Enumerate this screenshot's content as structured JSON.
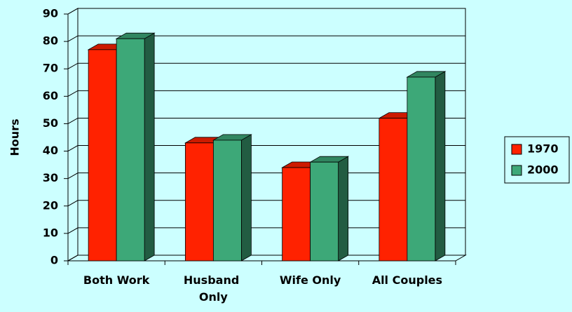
{
  "chart_data": {
    "type": "bar",
    "y_label": "Hours",
    "categories": [
      "Both Work",
      "Husband Only",
      "Wife Only",
      "All Couples"
    ],
    "series": [
      {
        "name": "1970",
        "color": "#ff2200",
        "values": [
          77,
          43,
          34,
          52
        ]
      },
      {
        "name": "2000",
        "color": "#3da878",
        "values": [
          81,
          44,
          36,
          67
        ]
      }
    ],
    "ylim": [
      0,
      90
    ],
    "yticks": [
      0,
      10,
      20,
      30,
      40,
      50,
      60,
      70,
      80,
      90
    ],
    "grid": true,
    "legend": "right"
  }
}
